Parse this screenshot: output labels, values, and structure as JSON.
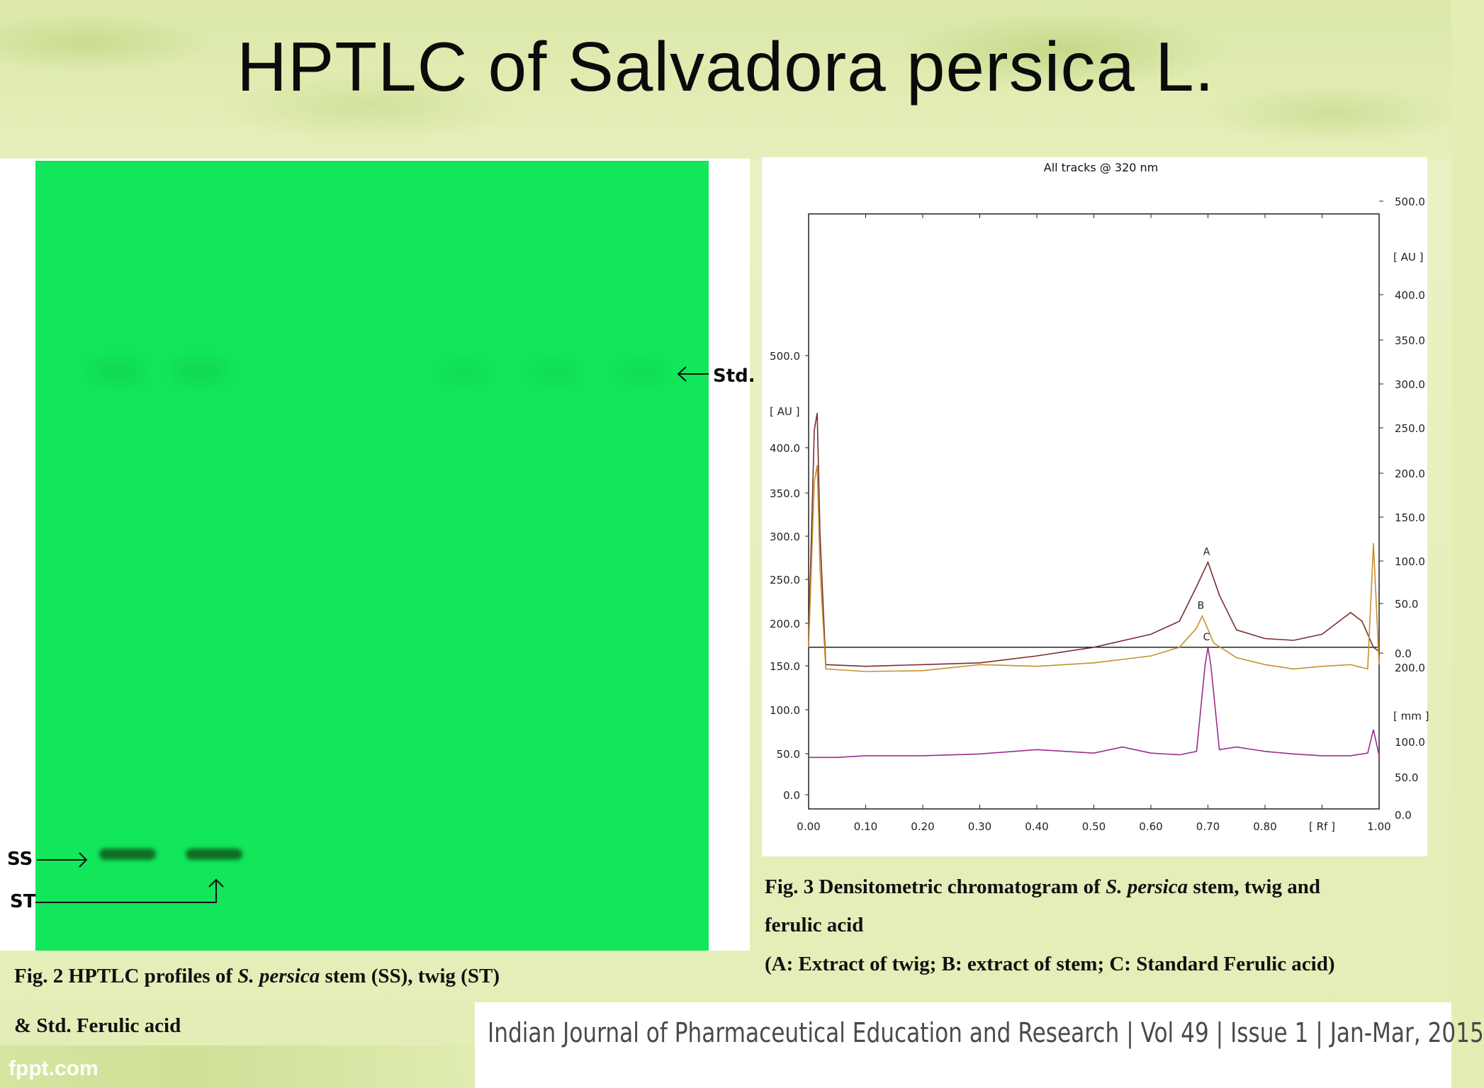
{
  "slide": {
    "title": "HPTLC of Salvadora persica L.",
    "footer": "Indian Journal of Pharmaceutical Education and Research | Vol 49 | Issue 1 | Jan-Mar, 2015",
    "watermark": "fppt.com"
  },
  "plate": {
    "labels": {
      "std": "Std.",
      "ss": "SS",
      "st": "ST"
    },
    "color": "#12e65a",
    "band_color": "#0b6e25"
  },
  "captions": {
    "fig2_prefix": "Fig. 2 HPTLC profiles of ",
    "fig2_italic": "S. persica",
    "fig2_suffix": " stem (SS), twig (ST)",
    "fig2_line2": "& Std. Ferulic acid",
    "fig3_prefix": "Fig. 3 Densitometric chromatogram of ",
    "fig3_italic": "S. persica",
    "fig3_suffix": " stem, twig and",
    "fig3_line2": "ferulic acid",
    "fig3_line3": "(A: Extract of twig; B: extract of stem; C: Standard Ferulic acid)"
  },
  "chart_data": {
    "type": "line",
    "title": "All tracks @ 320 nm",
    "xlabel": "[ Rf ]",
    "xlim": [
      0.0,
      1.0
    ],
    "x_ticks": [
      "0.00",
      "0.10",
      "0.20",
      "0.30",
      "0.40",
      "0.50",
      "0.60",
      "0.70",
      "0.80",
      "[ Rf ]",
      "1.00"
    ],
    "left_axis": {
      "label": "[ AU ]",
      "ticks": [
        "0.0",
        "50.0",
        "100.0",
        "150.0",
        "200.0",
        "250.0",
        "300.0",
        "350.0",
        "400.0",
        "500.0"
      ]
    },
    "right_axis_upper": {
      "label": "[ AU ]",
      "ticks": [
        "0.0",
        "50.0",
        "100.0",
        "150.0",
        "200.0",
        "250.0",
        "300.0",
        "350.0",
        "400.0",
        "500.0"
      ]
    },
    "right_axis_lower": {
      "label": "[ mm ]",
      "ticks": [
        "0.0",
        "50.0",
        "100.0",
        "200.0"
      ]
    },
    "baseline_au": 170,
    "series": [
      {
        "name": "A",
        "color": "#7a2e2e",
        "x": [
          0.0,
          0.01,
          0.015,
          0.02,
          0.03,
          0.1,
          0.2,
          0.3,
          0.4,
          0.5,
          0.6,
          0.65,
          0.68,
          0.7,
          0.72,
          0.75,
          0.8,
          0.85,
          0.9,
          0.95,
          0.97,
          0.99,
          1.0
        ],
        "y": [
          180,
          420,
          440,
          300,
          150,
          148,
          150,
          152,
          160,
          170,
          185,
          200,
          240,
          268,
          230,
          190,
          180,
          178,
          185,
          210,
          200,
          170,
          165
        ]
      },
      {
        "name": "B",
        "color": "#c8902c",
        "x": [
          0.0,
          0.01,
          0.015,
          0.02,
          0.03,
          0.1,
          0.2,
          0.3,
          0.4,
          0.5,
          0.6,
          0.65,
          0.68,
          0.69,
          0.71,
          0.75,
          0.8,
          0.85,
          0.9,
          0.95,
          0.98,
          0.99,
          1.0
        ],
        "y": [
          170,
          360,
          380,
          260,
          145,
          142,
          143,
          150,
          148,
          152,
          160,
          170,
          192,
          206,
          175,
          158,
          150,
          145,
          148,
          150,
          145,
          290,
          150
        ]
      },
      {
        "name": "C",
        "color": "#9c2d8c",
        "x": [
          0.0,
          0.05,
          0.1,
          0.2,
          0.3,
          0.4,
          0.5,
          0.55,
          0.6,
          0.65,
          0.68,
          0.695,
          0.7,
          0.705,
          0.72,
          0.75,
          0.8,
          0.85,
          0.9,
          0.95,
          0.98,
          0.99,
          1.0
        ],
        "y": [
          43,
          43,
          45,
          45,
          47,
          52,
          48,
          55,
          48,
          46,
          50,
          150,
          170,
          150,
          52,
          55,
          50,
          47,
          45,
          45,
          48,
          75,
          45
        ]
      }
    ],
    "peak_labels": [
      {
        "label": "A",
        "x": 0.7,
        "y": 268
      },
      {
        "label": "B",
        "x": 0.69,
        "y": 206
      },
      {
        "label": "C",
        "x": 0.7,
        "y": 170
      }
    ],
    "grid": false
  }
}
